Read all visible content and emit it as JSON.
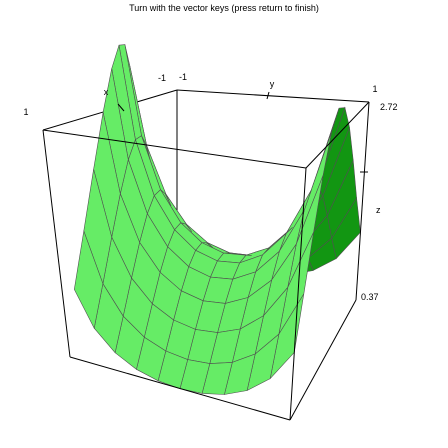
{
  "chart_data": {
    "type": "surface3d",
    "title": "Turn with the vector keys (press return to finish)",
    "function": "z = exp(x^2 - y^2)",
    "x_axis": {
      "label": "x",
      "range": [
        -1,
        1
      ],
      "tick_labels": [
        "-1",
        "1"
      ]
    },
    "y_axis": {
      "label": "y",
      "range": [
        -1,
        1
      ],
      "tick_labels": [
        "-1",
        "1"
      ]
    },
    "z_axis": {
      "label": "z",
      "range": [
        0.37,
        2.72
      ],
      "tick_labels": [
        "0.37",
        "2.72"
      ]
    },
    "grid_lines": 10,
    "colors": {
      "surface_top": "#129612",
      "surface_bottom": "#66ec66",
      "mesh": "#505050",
      "box": "#000000"
    }
  }
}
